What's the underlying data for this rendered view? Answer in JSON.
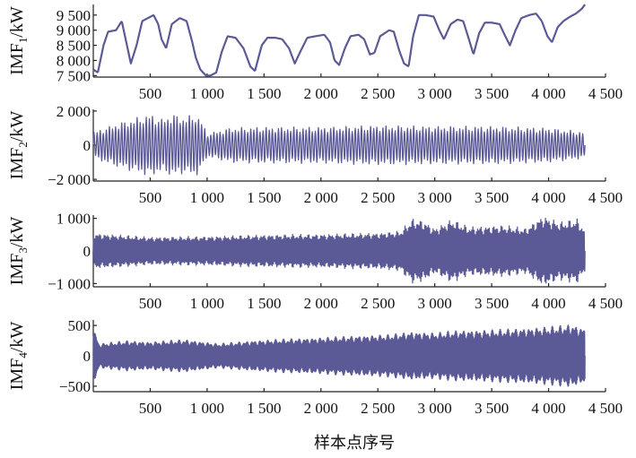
{
  "chart_data": {
    "type": "line",
    "xlabel": "样本点序号",
    "line_color": "#5b5a96",
    "x_range": [
      0,
      4500
    ],
    "x_ticks": [
      500,
      1000,
      1500,
      2000,
      2500,
      3000,
      3500,
      4000,
      4500
    ],
    "x_tick_labels": [
      "500",
      "1 000",
      "1 500",
      "2 000",
      "2 500",
      "3 000",
      "3 500",
      "4 000",
      "4 500"
    ],
    "n_samples": 4320,
    "panels": [
      {
        "id": "imf1",
        "ylabel_main": "IMF",
        "ylabel_sub": "1",
        "ylabel_unit": "/kW",
        "ylim": [
          7450,
          9850
        ],
        "y_ticks": [
          7500,
          8000,
          8500,
          9000,
          9500
        ],
        "y_tick_labels": [
          "7 500",
          "8 000",
          "8 500",
          "9 000",
          "9 500"
        ],
        "curve_points": [
          [
            0,
            7700
          ],
          [
            40,
            7600
          ],
          [
            90,
            8500
          ],
          [
            130,
            8950
          ],
          [
            200,
            9000
          ],
          [
            250,
            9300
          ],
          [
            290,
            8600
          ],
          [
            330,
            7900
          ],
          [
            380,
            8500
          ],
          [
            430,
            9300
          ],
          [
            480,
            9400
          ],
          [
            530,
            9500
          ],
          [
            570,
            9200
          ],
          [
            600,
            8700
          ],
          [
            640,
            8400
          ],
          [
            690,
            9200
          ],
          [
            760,
            9400
          ],
          [
            820,
            9300
          ],
          [
            870,
            8600
          ],
          [
            900,
            8100
          ],
          [
            940,
            7700
          ],
          [
            990,
            7500
          ],
          [
            1030,
            7500
          ],
          [
            1080,
            7600
          ],
          [
            1130,
            8300
          ],
          [
            1180,
            8800
          ],
          [
            1250,
            8750
          ],
          [
            1320,
            8400
          ],
          [
            1380,
            7800
          ],
          [
            1420,
            7650
          ],
          [
            1480,
            8500
          ],
          [
            1530,
            8750
          ],
          [
            1600,
            8750
          ],
          [
            1660,
            8700
          ],
          [
            1720,
            8400
          ],
          [
            1770,
            7900
          ],
          [
            1820,
            8300
          ],
          [
            1880,
            8750
          ],
          [
            1950,
            8800
          ],
          [
            2030,
            8850
          ],
          [
            2080,
            8600
          ],
          [
            2120,
            8000
          ],
          [
            2160,
            7850
          ],
          [
            2210,
            8400
          ],
          [
            2260,
            8800
          ],
          [
            2330,
            8850
          ],
          [
            2380,
            8700
          ],
          [
            2430,
            8200
          ],
          [
            2470,
            8250
          ],
          [
            2520,
            8800
          ],
          [
            2600,
            9000
          ],
          [
            2640,
            8950
          ],
          [
            2690,
            8300
          ],
          [
            2730,
            7900
          ],
          [
            2770,
            7800
          ],
          [
            2810,
            8800
          ],
          [
            2860,
            9500
          ],
          [
            2920,
            9500
          ],
          [
            2990,
            9450
          ],
          [
            3040,
            9000
          ],
          [
            3080,
            8700
          ],
          [
            3140,
            9200
          ],
          [
            3200,
            9350
          ],
          [
            3250,
            9300
          ],
          [
            3300,
            8700
          ],
          [
            3340,
            8200
          ],
          [
            3390,
            8900
          ],
          [
            3440,
            9250
          ],
          [
            3500,
            9250
          ],
          [
            3570,
            9200
          ],
          [
            3620,
            8800
          ],
          [
            3660,
            8500
          ],
          [
            3710,
            9000
          ],
          [
            3760,
            9400
          ],
          [
            3830,
            9500
          ],
          [
            3890,
            9550
          ],
          [
            3940,
            9300
          ],
          [
            3990,
            8800
          ],
          [
            4030,
            8600
          ],
          [
            4080,
            9100
          ],
          [
            4130,
            9300
          ],
          [
            4190,
            9450
          ],
          [
            4240,
            9550
          ],
          [
            4290,
            9700
          ],
          [
            4320,
            9850
          ]
        ]
      },
      {
        "id": "imf2",
        "ylabel_main": "IMF",
        "ylabel_sub": "2",
        "ylabel_unit": "/kW",
        "ylim": [
          -2100,
          2100
        ],
        "y_ticks": [
          -2000,
          0,
          2000
        ],
        "y_tick_labels": [
          "−2 000",
          "0",
          "2 000"
        ],
        "cycles": 160,
        "envelope_points": [
          [
            0,
            800
          ],
          [
            200,
            1300
          ],
          [
            400,
            1700
          ],
          [
            500,
            1900
          ],
          [
            600,
            1600
          ],
          [
            700,
            1900
          ],
          [
            800,
            1700
          ],
          [
            900,
            1900
          ],
          [
            950,
            1500
          ],
          [
            1000,
            700
          ],
          [
            1200,
            1050
          ],
          [
            1500,
            1100
          ],
          [
            2000,
            1100
          ],
          [
            2500,
            1200
          ],
          [
            3000,
            1150
          ],
          [
            3500,
            1150
          ],
          [
            4000,
            1050
          ],
          [
            4320,
            800
          ]
        ]
      },
      {
        "id": "imf3",
        "ylabel_main": "IMF",
        "ylabel_sub": "3",
        "ylabel_unit": "/kW",
        "ylim": [
          -1100,
          1100
        ],
        "y_ticks": [
          -1000,
          0,
          1000
        ],
        "y_tick_labels": [
          "−1 000",
          "0",
          "1 000"
        ],
        "cycles": 420,
        "envelope_points": [
          [
            0,
            550
          ],
          [
            500,
            430
          ],
          [
            1000,
            450
          ],
          [
            1500,
            500
          ],
          [
            2000,
            520
          ],
          [
            2500,
            560
          ],
          [
            2700,
            620
          ],
          [
            2800,
            1000
          ],
          [
            2900,
            950
          ],
          [
            3000,
            700
          ],
          [
            3150,
            980
          ],
          [
            3300,
            750
          ],
          [
            3600,
            800
          ],
          [
            3800,
            700
          ],
          [
            3950,
            1100
          ],
          [
            4100,
            900
          ],
          [
            4250,
            1000
          ],
          [
            4320,
            650
          ]
        ]
      },
      {
        "id": "imf4",
        "ylabel_main": "IMF",
        "ylabel_sub": "4",
        "ylabel_unit": "/kW",
        "ylim": [
          -590,
          590
        ],
        "y_ticks": [
          -500,
          0,
          500
        ],
        "y_tick_labels": [
          "−500",
          "0",
          "500"
        ],
        "cycles": 900,
        "envelope_points": [
          [
            0,
            480
          ],
          [
            50,
            200
          ],
          [
            300,
            250
          ],
          [
            500,
            230
          ],
          [
            800,
            270
          ],
          [
            1100,
            200
          ],
          [
            1400,
            250
          ],
          [
            1700,
            280
          ],
          [
            2000,
            300
          ],
          [
            2300,
            330
          ],
          [
            2600,
            350
          ],
          [
            2800,
            400
          ],
          [
            3000,
            380
          ],
          [
            3200,
            420
          ],
          [
            3500,
            430
          ],
          [
            3800,
            460
          ],
          [
            4000,
            480
          ],
          [
            4200,
            520
          ],
          [
            4320,
            450
          ]
        ]
      }
    ]
  }
}
